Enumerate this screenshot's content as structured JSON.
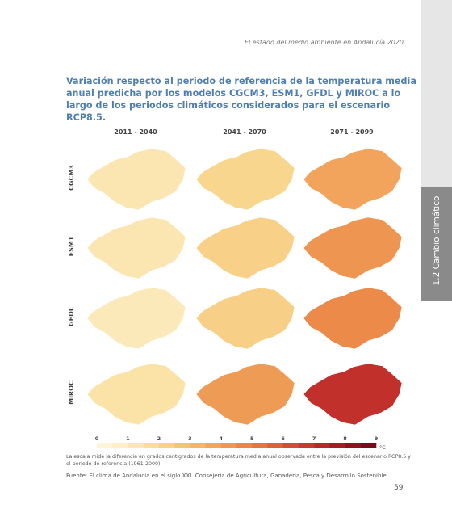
{
  "header": {
    "running_title": "El estado del medio ambiente en Andalucía 2020",
    "side_tab": "1.2 Cambio climático"
  },
  "figure": {
    "title": "Variación respecto al periodo de referencia de la temperatura media anual predicha por los modelos CGCM3, ESM1, GFDL y MIROC a lo largo de los periodos climáticos considerados para el escenario RCP8.5.",
    "columns": [
      "2011 - 2040",
      "2041 - 2070",
      "2071 - 2099"
    ],
    "rows": [
      "CGCM3",
      "ESM1",
      "GFDL",
      "MIROC"
    ],
    "fills": [
      [
        "#fbe6b2",
        "#f9d68e",
        "#f2a35c"
      ],
      [
        "#fbe6b2",
        "#f8d088",
        "#ee9651"
      ],
      [
        "#fce9b9",
        "#f8cf86",
        "#eb8a49"
      ],
      [
        "#fbe3a8",
        "#ee9b56",
        "#c2302b"
      ]
    ],
    "legend": {
      "ticks": [
        0,
        1,
        2,
        3,
        4,
        5,
        6,
        7,
        8,
        9
      ],
      "unit": "°C",
      "colors": [
        "#fff5d6",
        "#feefc6",
        "#fde6b0",
        "#fcdc9c",
        "#fbd088",
        "#f9c377",
        "#f7b468",
        "#f4a55c",
        "#f19652",
        "#ec8648",
        "#e5753f",
        "#dc6238",
        "#d14f31",
        "#c43d2c",
        "#b42c27",
        "#a11f23",
        "#8d141f",
        "#7a0b1c"
      ]
    },
    "caption": "La escala mide la diferencia en grados centígrados de la temperatura media anual observada entre la previsión del escenario RCP8.5 y el periodo de referencia (1961-2000).",
    "source": "Fuente: El clima de Andalucía en el siglo XXI. Consejería de Agricultura, Ganadería, Pesca y Desarrollo Sostenible."
  },
  "footer": {
    "page_number": "59"
  }
}
